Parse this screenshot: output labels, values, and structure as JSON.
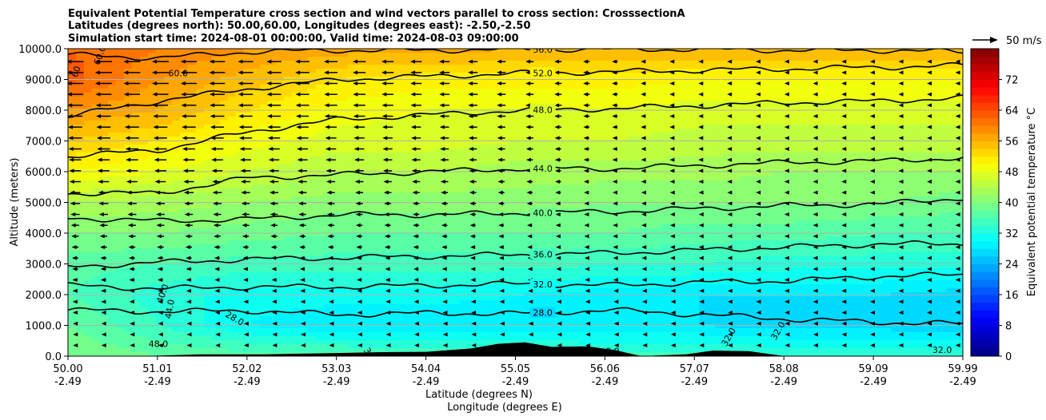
{
  "chart_data": {
    "type": "heatmap",
    "title_lines": [
      "Equivalent Potential Temperature cross section and wind vectors parallel to cross section: CrosssectionA",
      "Latitudes (degrees north): 50.00,60.00, Longitudes (degrees east): -2.50,-2.50",
      "Simulation start time: 2024-08-01 00:00:00, Valid time: 2024-08-03 09:00:00"
    ],
    "ylabel": "Altitude (meters)",
    "xlabel_lat": "Latitude (degrees N)",
    "xlabel_lon": "Longitude (degrees E)",
    "xlim": [
      50.0,
      59.99
    ],
    "ylim": [
      0,
      10000
    ],
    "x_ticks": [
      {
        "lat": "50.00",
        "lon": "-2.49"
      },
      {
        "lat": "51.01",
        "lon": "-2.49"
      },
      {
        "lat": "52.02",
        "lon": "-2.49"
      },
      {
        "lat": "53.03",
        "lon": "-2.49"
      },
      {
        "lat": "54.04",
        "lon": "-2.49"
      },
      {
        "lat": "55.05",
        "lon": "-2.49"
      },
      {
        "lat": "56.06",
        "lon": "-2.49"
      },
      {
        "lat": "57.07",
        "lon": "-2.49"
      },
      {
        "lat": "58.08",
        "lon": "-2.49"
      },
      {
        "lat": "59.09",
        "lon": "-2.49"
      },
      {
        "lat": "59.99",
        "lon": "-2.49"
      }
    ],
    "y_ticks": [
      {
        "value": 0,
        "label": "0.0"
      },
      {
        "value": 1000,
        "label": "1000.0"
      },
      {
        "value": 2000,
        "label": "2000.0"
      },
      {
        "value": 3000,
        "label": "3000.0"
      },
      {
        "value": 4000,
        "label": "4000.0"
      },
      {
        "value": 5000,
        "label": "5000.0"
      },
      {
        "value": 6000,
        "label": "6000.0"
      },
      {
        "value": 7000,
        "label": "7000.0"
      },
      {
        "value": 8000,
        "label": "8000.0"
      },
      {
        "value": 9000,
        "label": "9000.0"
      },
      {
        "value": 10000,
        "label": "10000.0"
      }
    ],
    "grid": "horizontal",
    "colorbar": {
      "label": "Equivalent potential temperature $^\\circ$C",
      "label_display": "Equivalent potential temperature °C",
      "range": [
        0,
        80
      ],
      "ticks": [
        "0",
        "8",
        "16",
        "24",
        "32",
        "40",
        "48",
        "56",
        "64",
        "72"
      ],
      "colormap": "jet"
    },
    "wind_key": {
      "label": "50 m/s",
      "speed": 50
    },
    "contours": [
      {
        "level": 28,
        "alt_m": [
          1500,
          1450,
          1480,
          1350,
          1400,
          1380,
          1500,
          1350,
          1200,
          1100,
          1050
        ],
        "label": "28.0"
      },
      {
        "level": 32,
        "alt_m": [
          2300,
          2200,
          2250,
          2250,
          2300,
          2350,
          2300,
          2400,
          2450,
          2600,
          2650
        ],
        "label": "32.0"
      },
      {
        "level": 36,
        "alt_m": [
          2900,
          3050,
          3150,
          3200,
          3250,
          3300,
          3350,
          3450,
          3550,
          3650,
          3650
        ],
        "label": "36.0"
      },
      {
        "level": 40,
        "alt_m": [
          4500,
          4400,
          4450,
          4600,
          4600,
          4650,
          4700,
          4800,
          4900,
          4950,
          5150
        ],
        "label": "40.0"
      },
      {
        "level": 44,
        "alt_m": [
          5300,
          5300,
          5800,
          5900,
          6000,
          6100,
          6100,
          6200,
          6300,
          6350,
          6450
        ],
        "label": "44.0"
      },
      {
        "level": 48,
        "alt_m": [
          6500,
          6700,
          7300,
          7700,
          7850,
          8000,
          8050,
          8150,
          8250,
          8300,
          8400
        ],
        "label": "48.0"
      },
      {
        "level": 52,
        "alt_m": [
          7800,
          8300,
          8700,
          9000,
          9100,
          9200,
          9250,
          9300,
          9350,
          9400,
          9450
        ],
        "label": "52.0"
      },
      {
        "level": 56,
        "alt_m": [
          9800,
          9700,
          9900,
          9950,
          9950,
          9980,
          9980,
          9980,
          9950,
          9950,
          9900
        ],
        "label": "56.0"
      }
    ],
    "extra_labels": [
      "60.0",
      "60",
      "60.0",
      "40.0",
      "44.0",
      "48.0",
      "28.0",
      "36.0",
      "32.0",
      "32.0",
      "32.0",
      "0.0"
    ],
    "theta_e_profiles": {
      "x_lat": [
        50.0,
        51.01,
        52.02,
        53.03,
        54.04,
        55.05,
        56.06,
        57.07,
        58.08,
        59.09,
        59.99
      ],
      "y_alt_m": [
        0,
        1000,
        2000,
        3000,
        4000,
        5000,
        6000,
        7000,
        8000,
        9000,
        10000
      ],
      "theta_e_C": [
        [
          40,
          38,
          37,
          37,
          36,
          36,
          35,
          35,
          34,
          34,
          34
        ],
        [
          38,
          34,
          30,
          28,
          28,
          28,
          28,
          28,
          27,
          27,
          26
        ],
        [
          36,
          33,
          31,
          31,
          31,
          30,
          29,
          28,
          28,
          28,
          27
        ],
        [
          37,
          36,
          35,
          35,
          35,
          35,
          34,
          34,
          33,
          33,
          33
        ],
        [
          40,
          40,
          39,
          38,
          38,
          38,
          38,
          37,
          37,
          36,
          36
        ],
        [
          44,
          43,
          42,
          41,
          41,
          41,
          40,
          40,
          40,
          40,
          39
        ],
        [
          50,
          48,
          46,
          44,
          44,
          43,
          43,
          43,
          42,
          42,
          42
        ],
        [
          54,
          52,
          49,
          47,
          47,
          46,
          46,
          45,
          45,
          45,
          45
        ],
        [
          58,
          56,
          52,
          49,
          48,
          48,
          48,
          47,
          47,
          47,
          47
        ],
        [
          63,
          58,
          55,
          52,
          51,
          51,
          51,
          50,
          50,
          50,
          50
        ],
        [
          62,
          60,
          58,
          57,
          57,
          56,
          56,
          56,
          56,
          56,
          56
        ]
      ]
    },
    "wind_u_ms": {
      "note": "wind parallel to cross section; negative = toward lower latitude",
      "x_lat": [
        50.0,
        51.01,
        52.02,
        53.03,
        54.04,
        55.05,
        56.06,
        57.07,
        58.08,
        59.09,
        59.99
      ],
      "y_alt_m": [
        1000,
        2000,
        3000,
        4000,
        5000,
        6000,
        7000,
        8000,
        9000,
        10000
      ],
      "u": [
        [
          -5,
          -5,
          -4,
          -4,
          -4,
          -3,
          -2,
          -2,
          -1,
          -1,
          -1
        ],
        [
          -6,
          -6,
          -5,
          -5,
          -5,
          -4,
          -3,
          -2,
          -2,
          -1,
          -1
        ],
        [
          -7,
          -7,
          -6,
          -6,
          -6,
          -5,
          -4,
          -3,
          -2,
          -1,
          -1
        ],
        [
          -9,
          -9,
          -8,
          -8,
          -7,
          -6,
          -5,
          -3,
          -2,
          -1,
          -1
        ],
        [
          -12,
          -11,
          -10,
          -9,
          -8,
          -7,
          -5,
          -3,
          -2,
          -1,
          -1
        ],
        [
          -14,
          -14,
          -12,
          -11,
          -10,
          -8,
          -6,
          -4,
          -2,
          -1,
          -1
        ],
        [
          -16,
          -16,
          -15,
          -13,
          -11,
          -9,
          -6,
          -4,
          -2,
          -1,
          -1
        ],
        [
          -18,
          -18,
          -17,
          -15,
          -12,
          -10,
          -7,
          -4,
          -2,
          -1,
          -1
        ],
        [
          -20,
          -20,
          -18,
          -16,
          -13,
          -10,
          -7,
          -4,
          -2,
          -1,
          -1
        ],
        [
          -20,
          -20,
          -18,
          -16,
          -13,
          -10,
          -7,
          -4,
          -2,
          -1,
          -1
        ]
      ]
    },
    "terrain_alt_m": {
      "x_lat": [
        50.0,
        50.8,
        51.5,
        52.2,
        53.0,
        53.5,
        54.0,
        54.5,
        54.8,
        55.1,
        55.4,
        55.8,
        56.1,
        56.4,
        56.9,
        57.2,
        57.6,
        58.0,
        59.0,
        59.99
      ],
      "alt": [
        0,
        0,
        60,
        60,
        100,
        130,
        140,
        250,
        400,
        450,
        300,
        320,
        200,
        0,
        60,
        180,
        160,
        0,
        0,
        0
      ]
    },
    "colors": {
      "contour": "#000000",
      "grid": "#b0b0b0",
      "terrain": "#000000"
    }
  }
}
